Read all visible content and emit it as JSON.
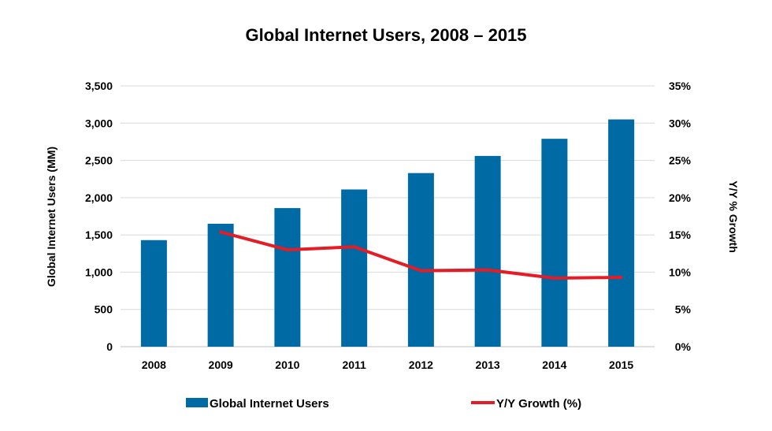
{
  "chart_data": {
    "type": "bar",
    "title": "Global Internet Users, 2008 – 2015",
    "categories": [
      "2008",
      "2009",
      "2010",
      "2011",
      "2012",
      "2013",
      "2014",
      "2015"
    ],
    "series": [
      {
        "name": "Global Internet Users",
        "type": "bar",
        "axis": "left",
        "color": "#006aa5",
        "values": [
          1430,
          1650,
          1860,
          2110,
          2330,
          2560,
          2790,
          3050
        ]
      },
      {
        "name": "Y/Y Growth (%)",
        "type": "line",
        "axis": "right",
        "color": "#e31c25",
        "values": [
          null,
          15.4,
          13.0,
          13.4,
          10.2,
          10.3,
          9.2,
          9.3
        ]
      }
    ],
    "ylabel": "Global Internet Users (MM)",
    "y2label": "Y/Y % Growth",
    "ylim": [
      0,
      3500
    ],
    "y2lim": [
      0,
      35
    ],
    "yticks": [
      "0",
      "500",
      "1,000",
      "1,500",
      "2,000",
      "2,500",
      "3,000",
      "3,500"
    ],
    "y2ticks": [
      "0%",
      "5%",
      "10%",
      "15%",
      "20%",
      "25%",
      "30%",
      "35%"
    ],
    "legend": {
      "position": "bottom",
      "items": [
        "Global Internet Users",
        "Y/Y Growth (%)"
      ]
    },
    "grid": true
  }
}
